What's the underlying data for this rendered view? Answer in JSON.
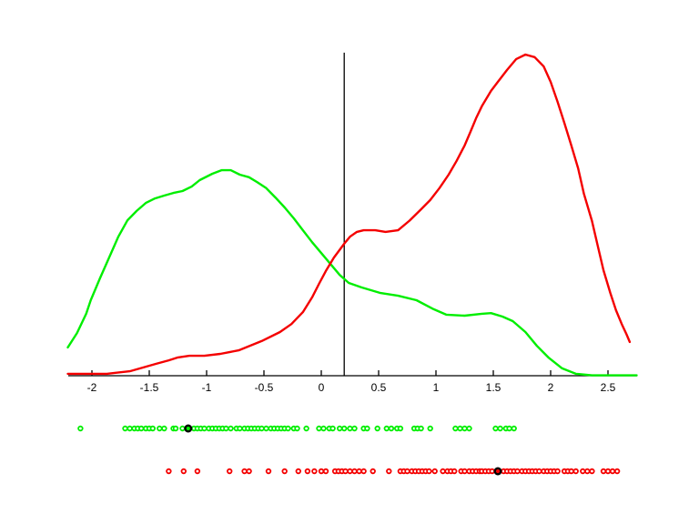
{
  "figure": {
    "background": "#ffffff",
    "axis_color": "#000000",
    "threshold_line_color": "#000000",
    "highlight_ring_color": "#000000"
  },
  "chart_data": {
    "type": "line",
    "title": "",
    "xlabel": "",
    "ylabel": "",
    "grid": false,
    "legend": null,
    "y_axis_shown": false,
    "x_range": [
      -2.21,
      2.75
    ],
    "x_ticks": {
      "values": [
        -2,
        -1.5,
        -1,
        -0.5,
        0,
        0.5,
        1,
        1.5,
        2,
        2.5
      ],
      "labels": [
        "-2",
        "-1.5",
        "-1",
        "-0.5",
        "0",
        "0.5",
        "1",
        "1.5",
        "2",
        "2.5"
      ]
    },
    "threshold_line_x": 0.2,
    "series": [
      {
        "name": "green-density-curve",
        "color": "#00EE00",
        "points": [
          [
            -2.21,
            0.088
          ],
          [
            -2.13,
            0.133
          ],
          [
            -2.05,
            0.193
          ],
          [
            -2.01,
            0.235
          ],
          [
            -1.93,
            0.303
          ],
          [
            -1.85,
            0.368
          ],
          [
            -1.77,
            0.433
          ],
          [
            -1.69,
            0.484
          ],
          [
            -1.61,
            0.513
          ],
          [
            -1.53,
            0.538
          ],
          [
            -1.45,
            0.552
          ],
          [
            -1.37,
            0.561
          ],
          [
            -1.29,
            0.569
          ],
          [
            -1.21,
            0.575
          ],
          [
            -1.13,
            0.589
          ],
          [
            -1.06,
            0.609
          ],
          [
            -0.95,
            0.629
          ],
          [
            -0.87,
            0.64
          ],
          [
            -0.79,
            0.64
          ],
          [
            -0.71,
            0.626
          ],
          [
            -0.63,
            0.618
          ],
          [
            -0.56,
            0.603
          ],
          [
            -0.48,
            0.584
          ],
          [
            -0.4,
            0.555
          ],
          [
            -0.32,
            0.524
          ],
          [
            -0.24,
            0.49
          ],
          [
            -0.16,
            0.453
          ],
          [
            -0.08,
            0.416
          ],
          [
            0,
            0.382
          ],
          [
            0.08,
            0.348
          ],
          [
            0.16,
            0.314
          ],
          [
            0.24,
            0.289
          ],
          [
            0.35,
            0.275
          ],
          [
            0.51,
            0.258
          ],
          [
            0.67,
            0.249
          ],
          [
            0.83,
            0.235
          ],
          [
            0.98,
            0.207
          ],
          [
            1.09,
            0.19
          ],
          [
            1.25,
            0.187
          ],
          [
            1.4,
            0.193
          ],
          [
            1.48,
            0.195
          ],
          [
            1.58,
            0.184
          ],
          [
            1.67,
            0.17
          ],
          [
            1.78,
            0.136
          ],
          [
            1.88,
            0.093
          ],
          [
            1.98,
            0.057
          ],
          [
            2.1,
            0.023
          ],
          [
            2.22,
            0.006
          ],
          [
            2.36,
            0.001
          ],
          [
            2.75,
            0.001
          ]
        ]
      },
      {
        "name": "red-density-curve",
        "color": "#F40000",
        "points": [
          [
            -2.21,
            0.006
          ],
          [
            -1.87,
            0.006
          ],
          [
            -1.67,
            0.014
          ],
          [
            -1.53,
            0.028
          ],
          [
            -1.44,
            0.037
          ],
          [
            -1.33,
            0.048
          ],
          [
            -1.25,
            0.057
          ],
          [
            -1.15,
            0.062
          ],
          [
            -1.02,
            0.062
          ],
          [
            -0.88,
            0.068
          ],
          [
            -0.72,
            0.079
          ],
          [
            -0.52,
            0.108
          ],
          [
            -0.36,
            0.136
          ],
          [
            -0.26,
            0.161
          ],
          [
            -0.16,
            0.198
          ],
          [
            -0.08,
            0.244
          ],
          [
            -0.02,
            0.286
          ],
          [
            0.04,
            0.326
          ],
          [
            0.11,
            0.368
          ],
          [
            0.2,
            0.411
          ],
          [
            0.25,
            0.433
          ],
          [
            0.31,
            0.448
          ],
          [
            0.37,
            0.453
          ],
          [
            0.47,
            0.453
          ],
          [
            0.56,
            0.448
          ],
          [
            0.67,
            0.453
          ],
          [
            0.77,
            0.483
          ],
          [
            0.87,
            0.518
          ],
          [
            0.95,
            0.547
          ],
          [
            1.03,
            0.584
          ],
          [
            1.11,
            0.626
          ],
          [
            1.18,
            0.669
          ],
          [
            1.25,
            0.717
          ],
          [
            1.3,
            0.759
          ],
          [
            1.35,
            0.802
          ],
          [
            1.4,
            0.839
          ],
          [
            1.48,
            0.887
          ],
          [
            1.54,
            0.915
          ],
          [
            1.62,
            0.952
          ],
          [
            1.7,
            0.986
          ],
          [
            1.78,
            1.0
          ],
          [
            1.86,
            0.992
          ],
          [
            1.94,
            0.963
          ],
          [
            2.0,
            0.915
          ],
          [
            2.06,
            0.853
          ],
          [
            2.12,
            0.787
          ],
          [
            2.18,
            0.717
          ],
          [
            2.24,
            0.646
          ],
          [
            2.29,
            0.567
          ],
          [
            2.36,
            0.482
          ],
          [
            2.41,
            0.405
          ],
          [
            2.46,
            0.329
          ],
          [
            2.52,
            0.258
          ],
          [
            2.57,
            0.204
          ],
          [
            2.62,
            0.161
          ],
          [
            2.66,
            0.13
          ],
          [
            2.69,
            0.105
          ]
        ]
      }
    ],
    "rug": [
      {
        "name": "green-sample-points",
        "color": "#00EE00",
        "row": 1,
        "values": [
          -2.1,
          -1.71,
          -1.67,
          -1.63,
          -1.6,
          -1.57,
          -1.53,
          -1.5,
          -1.47,
          -1.41,
          -1.37,
          -1.29,
          -1.27,
          -1.21,
          -1.16,
          -1.11,
          -1.08,
          -1.05,
          -1.02,
          -0.98,
          -0.95,
          -0.92,
          -0.89,
          -0.86,
          -0.83,
          -0.79,
          -0.74,
          -0.71,
          -0.67,
          -0.64,
          -0.61,
          -0.58,
          -0.55,
          -0.52,
          -0.48,
          -0.44,
          -0.41,
          -0.38,
          -0.35,
          -0.32,
          -0.29,
          -0.24,
          -0.21,
          -0.13,
          -0.02,
          0.02,
          0.07,
          0.1,
          0.16,
          0.2,
          0.25,
          0.29,
          0.37,
          0.4,
          0.49,
          0.57,
          0.61,
          0.66,
          0.69,
          0.81,
          0.84,
          0.87,
          0.95,
          1.17,
          1.21,
          1.25,
          1.29,
          1.52,
          1.56,
          1.61,
          1.64,
          1.68
        ],
        "highlighted_value": -1.16
      },
      {
        "name": "red-sample-points",
        "color": "#F40000",
        "row": 2,
        "values": [
          -1.33,
          -1.2,
          -1.08,
          -0.8,
          -0.67,
          -0.63,
          -0.46,
          -0.32,
          -0.2,
          -0.12,
          -0.06,
          0.0,
          0.04,
          0.12,
          0.15,
          0.18,
          0.21,
          0.25,
          0.29,
          0.33,
          0.37,
          0.45,
          0.59,
          0.69,
          0.72,
          0.75,
          0.79,
          0.82,
          0.85,
          0.88,
          0.91,
          0.94,
          0.99,
          1.06,
          1.1,
          1.13,
          1.16,
          1.22,
          1.25,
          1.29,
          1.32,
          1.35,
          1.38,
          1.4,
          1.43,
          1.46,
          1.49,
          1.54,
          1.59,
          1.62,
          1.65,
          1.68,
          1.71,
          1.75,
          1.78,
          1.81,
          1.84,
          1.87,
          1.9,
          1.94,
          1.97,
          2.0,
          2.03,
          2.06,
          2.12,
          2.15,
          2.18,
          2.22,
          2.28,
          2.32,
          2.36,
          2.46,
          2.5,
          2.54,
          2.58
        ],
        "highlighted_value": 1.54
      }
    ]
  }
}
